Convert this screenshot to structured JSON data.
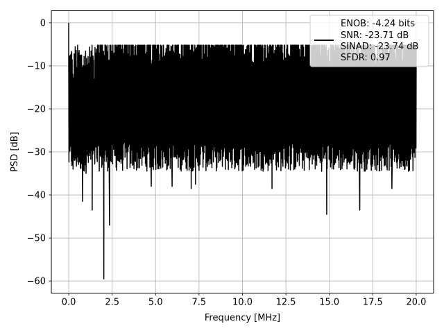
{
  "chart_data": {
    "type": "line",
    "title": "",
    "xlabel": "Frequency [MHz]",
    "ylabel": "PSD [dB]",
    "xlim": [
      -1.0,
      21.0
    ],
    "ylim": [
      -62.8,
      2.8
    ],
    "xticks": [
      0.0,
      2.5,
      5.0,
      7.5,
      10.0,
      12.5,
      15.0,
      17.5,
      20.0
    ],
    "xtick_labels": [
      "0.0",
      "2.5",
      "5.0",
      "7.5",
      "10.0",
      "12.5",
      "15.0",
      "17.5",
      "20.0"
    ],
    "yticks": [
      0,
      -10,
      -20,
      -30,
      -40,
      -50,
      -60
    ],
    "ytick_labels": [
      "0",
      "−10",
      "−20",
      "−30",
      "−40",
      "−50",
      "−60"
    ],
    "grid": true,
    "legend": {
      "placement": "upper-right",
      "entries": [
        "ENOB: -4.24 bits",
        "SNR: -23.71 dB",
        "SINAD: -23.74 dB",
        "SFDR: 0.97"
      ]
    },
    "series": [
      {
        "color": "#000000",
        "x_start": 0.0,
        "x_end": 20.0,
        "mean_level": -19,
        "upper_envelope": -8,
        "lower_envelope": -31,
        "peak": {
          "x": 0.0,
          "y": 0.0
        },
        "dips": [
          {
            "x": 0.25,
            "y": -34
          },
          {
            "x": 0.8,
            "y": -41.5
          },
          {
            "x": 1.0,
            "y": -35
          },
          {
            "x": 1.35,
            "y": -43.5
          },
          {
            "x": 2.02,
            "y": -59.5
          },
          {
            "x": 2.35,
            "y": -47
          },
          {
            "x": 4.75,
            "y": -38
          },
          {
            "x": 5.95,
            "y": -38
          },
          {
            "x": 7.05,
            "y": -38.5
          },
          {
            "x": 7.3,
            "y": -37.5
          },
          {
            "x": 11.7,
            "y": -38.5
          },
          {
            "x": 14.85,
            "y": -44.5
          },
          {
            "x": 16.75,
            "y": -43.5
          },
          {
            "x": 18.6,
            "y": -38.5
          }
        ]
      }
    ]
  }
}
